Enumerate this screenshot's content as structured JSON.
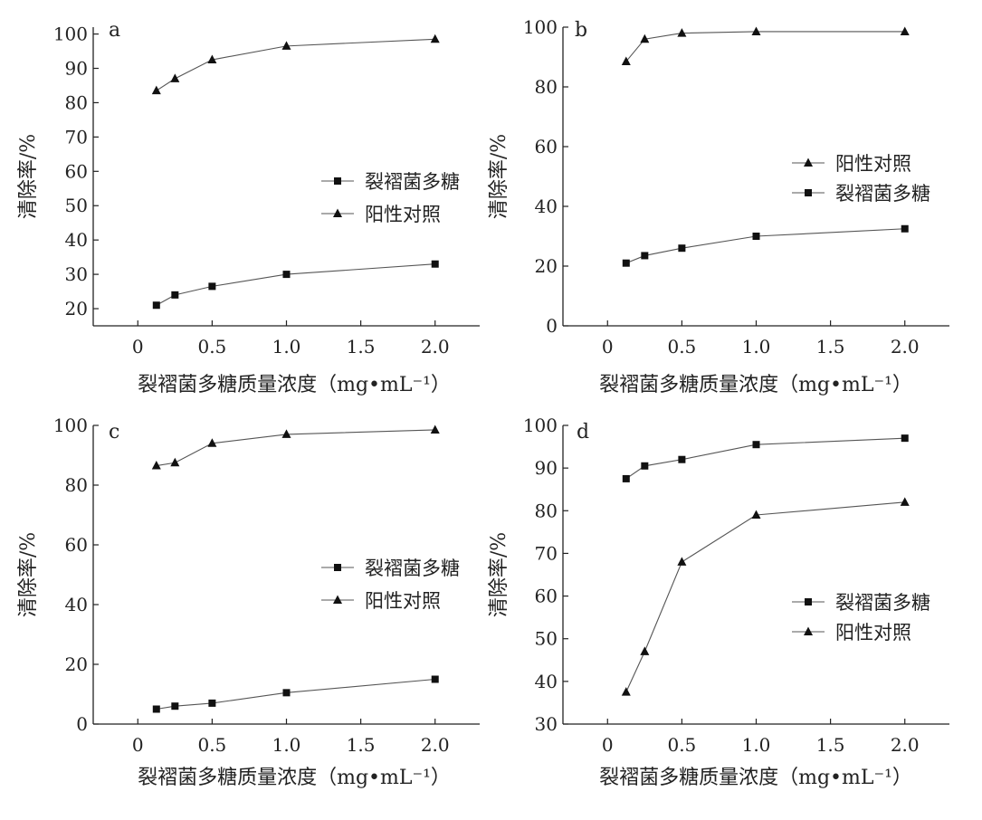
{
  "chart_data": [
    {
      "type": "line",
      "panel_label": "a",
      "xlabel": "裂褶菌多糖质量浓度（mg•mL⁻¹）",
      "ylabel": "清除率/%",
      "xlim": [
        -0.3,
        2.3
      ],
      "ylim": [
        15,
        102
      ],
      "xticks": [
        0,
        0.5,
        1.0,
        1.5,
        2.0
      ],
      "xtick_labels": [
        "0",
        "0.5",
        "1.0",
        "1.5",
        "2.0"
      ],
      "yticks": [
        20,
        30,
        40,
        50,
        60,
        70,
        80,
        90,
        100
      ],
      "ytick_labels": [
        "20",
        "30",
        "40",
        "50",
        "60",
        "70",
        "80",
        "90",
        "100"
      ],
      "x": [
        0.125,
        0.25,
        0.5,
        1.0,
        2.0
      ],
      "legend_order": [
        "裂褶菌多糖",
        "阳性对照"
      ],
      "series": [
        {
          "name": "裂褶菌多糖",
          "marker": "square",
          "values": [
            21,
            24,
            26.5,
            30,
            33
          ]
        },
        {
          "name": "阳性对照",
          "marker": "triangle",
          "values": [
            83.5,
            87,
            92.5,
            96.5,
            98.5
          ]
        }
      ]
    },
    {
      "type": "line",
      "panel_label": "b",
      "xlabel": "裂褶菌多糖质量浓度（mg•mL⁻¹）",
      "ylabel": "清除率/%",
      "xlim": [
        -0.3,
        2.3
      ],
      "ylim": [
        0,
        100
      ],
      "xticks": [
        0,
        0.5,
        1.0,
        1.5,
        2.0
      ],
      "xtick_labels": [
        "0",
        "0.5",
        "1.0",
        "1.5",
        "2.0"
      ],
      "yticks": [
        0,
        20,
        40,
        60,
        80,
        100
      ],
      "ytick_labels": [
        "0",
        "20",
        "40",
        "60",
        "80",
        "100"
      ],
      "x": [
        0.125,
        0.25,
        0.5,
        1.0,
        2.0
      ],
      "legend_order": [
        "阳性对照",
        "裂褶菌多糖"
      ],
      "series": [
        {
          "name": "裂褶菌多糖",
          "marker": "square",
          "values": [
            21,
            23.5,
            26,
            30,
            32.5
          ]
        },
        {
          "name": "阳性对照",
          "marker": "triangle",
          "values": [
            88.5,
            96,
            98,
            98.5,
            98.5
          ]
        }
      ]
    },
    {
      "type": "line",
      "panel_label": "c",
      "xlabel": "裂褶菌多糖质量浓度（mg•mL⁻¹）",
      "ylabel": "清除率/%",
      "xlim": [
        -0.3,
        2.3
      ],
      "ylim": [
        0,
        100
      ],
      "xticks": [
        0,
        0.5,
        1.0,
        1.5,
        2.0
      ],
      "xtick_labels": [
        "0",
        "0.5",
        "1.0",
        "1.5",
        "2.0"
      ],
      "yticks": [
        0,
        20,
        40,
        60,
        80,
        100
      ],
      "ytick_labels": [
        "0",
        "20",
        "40",
        "60",
        "80",
        "100"
      ],
      "x": [
        0.125,
        0.25,
        0.5,
        1.0,
        2.0
      ],
      "legend_order": [
        "裂褶菌多糖",
        "阳性对照"
      ],
      "series": [
        {
          "name": "裂褶菌多糖",
          "marker": "square",
          "values": [
            5,
            6,
            7,
            10.5,
            15
          ]
        },
        {
          "name": "阳性对照",
          "marker": "triangle",
          "values": [
            86.5,
            87.5,
            94,
            97,
            98.5
          ]
        }
      ]
    },
    {
      "type": "line",
      "panel_label": "d",
      "xlabel": "裂褶菌多糖质量浓度（mg•mL⁻¹）",
      "ylabel": "清除率/%",
      "xlim": [
        -0.3,
        2.3
      ],
      "ylim": [
        30,
        100
      ],
      "xticks": [
        0,
        0.5,
        1.0,
        1.5,
        2.0
      ],
      "xtick_labels": [
        "0",
        "0.5",
        "1.0",
        "1.5",
        "2.0"
      ],
      "yticks": [
        30,
        40,
        50,
        60,
        70,
        80,
        90,
        100
      ],
      "ytick_labels": [
        "30",
        "40",
        "50",
        "60",
        "70",
        "80",
        "90",
        "100"
      ],
      "x": [
        0.125,
        0.25,
        0.5,
        1.0,
        2.0
      ],
      "legend_order": [
        "裂褶菌多糖",
        "阳性对照"
      ],
      "series": [
        {
          "name": "裂褶菌多糖",
          "marker": "square",
          "values": [
            87.5,
            90.5,
            92,
            95.5,
            97
          ]
        },
        {
          "name": "阳性对照",
          "marker": "triangle",
          "values": [
            37.5,
            47,
            68,
            79,
            82
          ]
        }
      ]
    }
  ]
}
